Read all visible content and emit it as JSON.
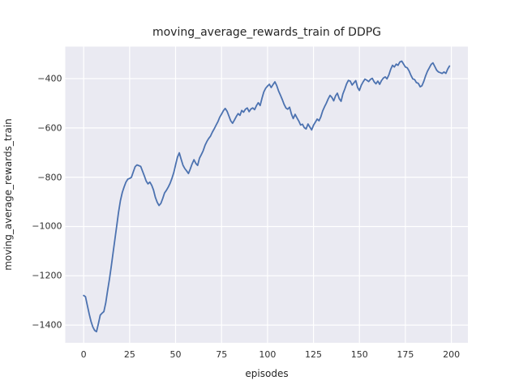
{
  "chart_data": {
    "type": "line",
    "title": "moving_average_rewards_train of DDPG",
    "xlabel": "episodes",
    "ylabel": "moving_average_rewards_train",
    "x_start": 0,
    "x_step": 1,
    "values": [
      -1280,
      -1285,
      -1320,
      -1355,
      -1385,
      -1408,
      -1422,
      -1427,
      -1395,
      -1360,
      -1352,
      -1345,
      -1310,
      -1262,
      -1215,
      -1162,
      -1108,
      -1052,
      -996,
      -942,
      -895,
      -862,
      -840,
      -820,
      -808,
      -805,
      -800,
      -778,
      -757,
      -750,
      -753,
      -756,
      -775,
      -795,
      -816,
      -827,
      -820,
      -833,
      -852,
      -882,
      -902,
      -915,
      -906,
      -886,
      -864,
      -853,
      -840,
      -825,
      -805,
      -781,
      -750,
      -719,
      -701,
      -726,
      -751,
      -765,
      -774,
      -785,
      -766,
      -746,
      -729,
      -744,
      -752,
      -723,
      -708,
      -693,
      -671,
      -655,
      -643,
      -633,
      -617,
      -604,
      -589,
      -575,
      -557,
      -544,
      -530,
      -521,
      -532,
      -552,
      -571,
      -581,
      -568,
      -554,
      -542,
      -549,
      -529,
      -536,
      -524,
      -519,
      -534,
      -523,
      -519,
      -526,
      -509,
      -498,
      -509,
      -479,
      -454,
      -439,
      -430,
      -423,
      -436,
      -424,
      -413,
      -428,
      -450,
      -467,
      -484,
      -504,
      -519,
      -524,
      -516,
      -544,
      -562,
      -545,
      -559,
      -572,
      -588,
      -585,
      -599,
      -604,
      -584,
      -596,
      -608,
      -589,
      -577,
      -564,
      -571,
      -555,
      -531,
      -514,
      -500,
      -482,
      -468,
      -476,
      -490,
      -470,
      -459,
      -481,
      -492,
      -462,
      -443,
      -421,
      -407,
      -410,
      -426,
      -417,
      -408,
      -436,
      -448,
      -427,
      -413,
      -402,
      -406,
      -412,
      -403,
      -399,
      -413,
      -421,
      -410,
      -423,
      -408,
      -398,
      -393,
      -401,
      -385,
      -362,
      -346,
      -353,
      -341,
      -346,
      -332,
      -329,
      -341,
      -353,
      -356,
      -369,
      -386,
      -401,
      -404,
      -416,
      -419,
      -433,
      -429,
      -411,
      -388,
      -370,
      -356,
      -342,
      -336,
      -351,
      -366,
      -373,
      -376,
      -379,
      -373,
      -379,
      -361,
      -349
    ],
    "xticks": [
      0,
      25,
      50,
      75,
      100,
      125,
      150,
      175,
      200
    ],
    "yticks": [
      -400,
      -600,
      -800,
      -1000,
      -1200,
      -1400
    ],
    "xlim": [
      -10,
      209
    ],
    "ylim": [
      -1472,
      -270
    ],
    "grid": true,
    "legend_position": "none",
    "line_color": "#4c72b0",
    "plot_bg_color": "#eaeaf2",
    "grid_color": "#ffffff",
    "text_color": "#262626"
  }
}
